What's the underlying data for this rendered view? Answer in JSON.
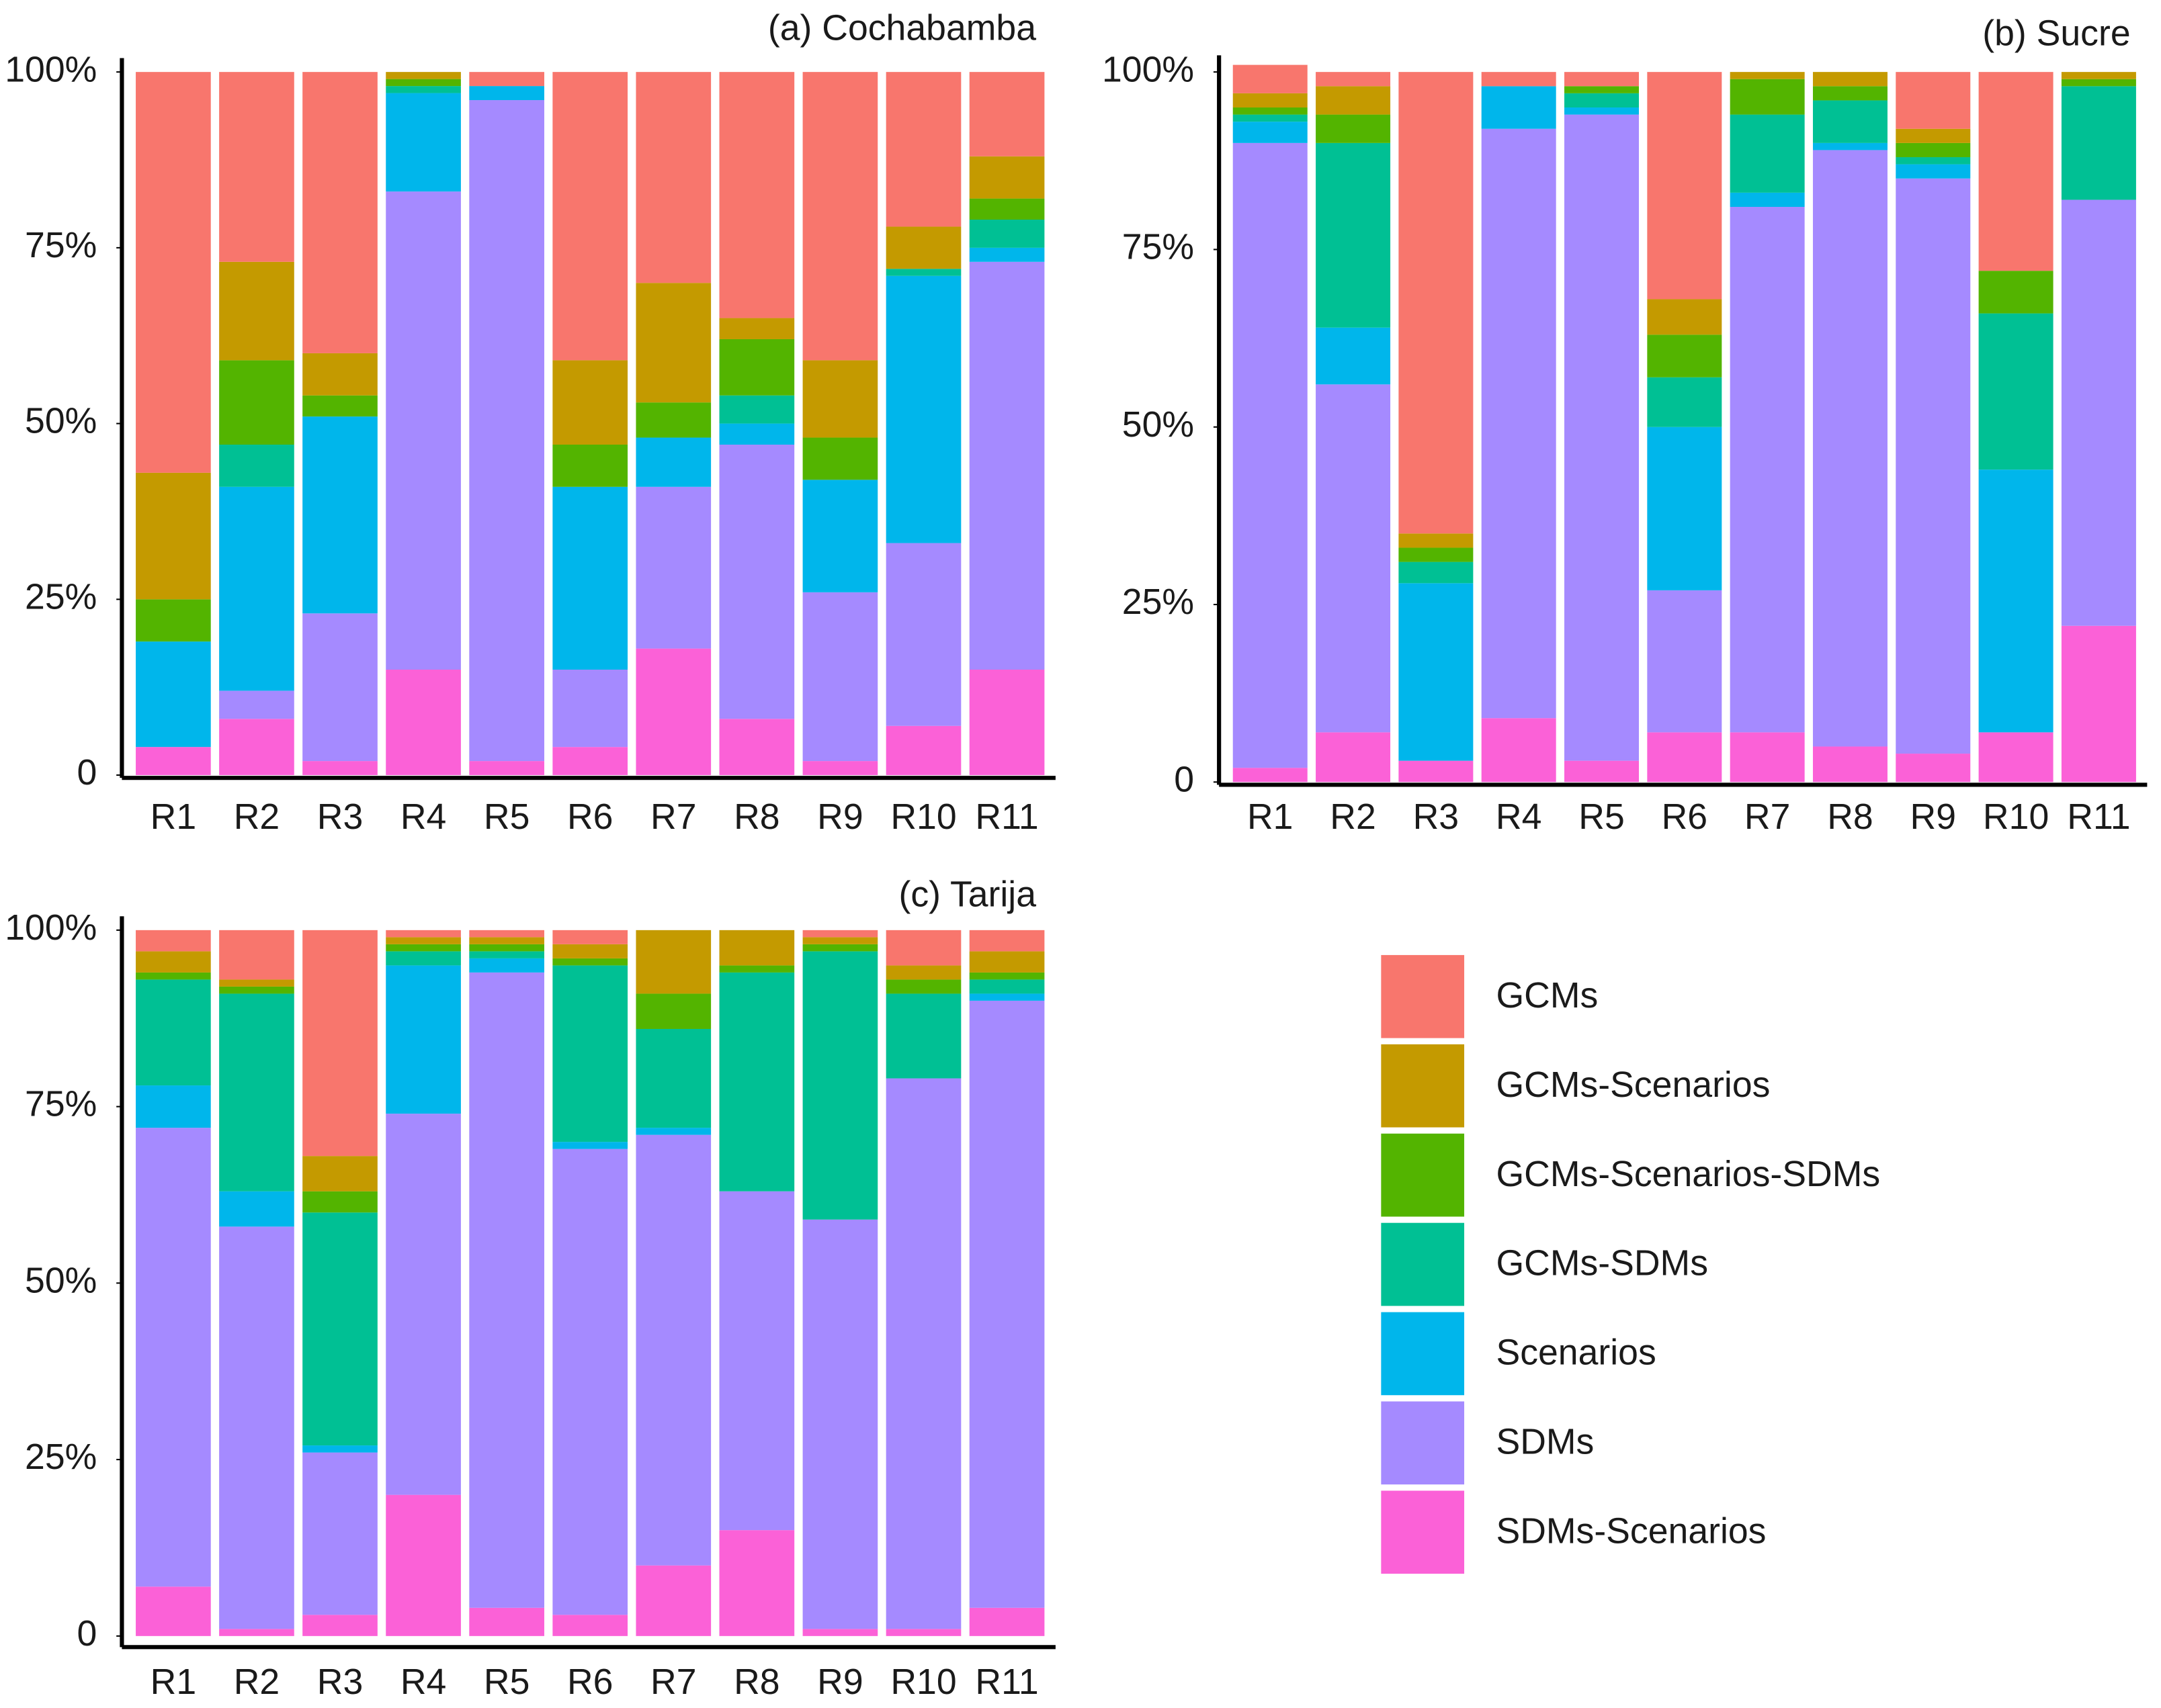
{
  "chart_data": [
    {
      "type": "stacked_bar",
      "title": "(a) Cochabamba",
      "categories": [
        "R1",
        "R2",
        "R3",
        "R4",
        "R5",
        "R6",
        "R7",
        "R8",
        "R9",
        "R10",
        "R11"
      ],
      "ylim": [
        0,
        100
      ],
      "yticks": [
        0,
        {
          "value": 25,
          "label": "25%"
        },
        {
          "value": 50,
          "label": "50%"
        },
        {
          "value": 75,
          "label": "75%"
        },
        {
          "value": 100,
          "label": "100%"
        }
      ],
      "series": [
        {
          "name": "GCMs",
          "color": "#f8766d",
          "values": [
            57,
            27,
            40,
            0,
            2,
            41,
            30,
            35,
            41,
            22,
            12
          ]
        },
        {
          "name": "GCMs-Scenarios",
          "color": "#c49a00",
          "values": [
            18,
            14,
            6,
            1,
            0,
            12,
            17,
            3,
            11,
            6,
            6
          ]
        },
        {
          "name": "GCMs-Scenarios-SDMs",
          "color": "#53b400",
          "values": [
            6,
            12,
            3,
            1,
            0,
            6,
            5,
            8,
            6,
            0,
            3
          ]
        },
        {
          "name": "GCMs-SDMs",
          "color": "#00c094",
          "values": [
            0,
            6,
            0,
            1,
            0,
            0,
            0,
            4,
            0,
            1,
            4
          ]
        },
        {
          "name": "Scenarios",
          "color": "#00b6eb",
          "values": [
            15,
            29,
            28,
            14,
            2,
            26,
            7,
            3,
            16,
            38,
            2
          ]
        },
        {
          "name": "SDMs",
          "color": "#a58aff",
          "values": [
            0,
            4,
            21,
            68,
            94,
            11,
            23,
            39,
            24,
            26,
            58
          ]
        },
        {
          "name": "SDMs-Scenarios",
          "color": "#fb61d7",
          "values": [
            4,
            8,
            2,
            15,
            2,
            4,
            18,
            8,
            2,
            7,
            15
          ]
        }
      ]
    },
    {
      "type": "stacked_bar",
      "title": "(b) Sucre",
      "categories": [
        "R1",
        "R2",
        "R3",
        "R4",
        "R5",
        "R6",
        "R7",
        "R8",
        "R9",
        "R10",
        "R11"
      ],
      "ylim": [
        0,
        100
      ],
      "yticks": [
        0,
        {
          "value": 25,
          "label": "25%"
        },
        {
          "value": 50,
          "label": "50%"
        },
        {
          "value": 75,
          "label": "75%"
        },
        {
          "value": 100,
          "label": "100%"
        }
      ],
      "series": [
        {
          "name": "GCMs",
          "color": "#f8766d",
          "values": [
            4,
            2,
            65,
            2,
            2,
            32,
            0,
            0,
            8,
            28,
            0
          ]
        },
        {
          "name": "GCMs-Scenarios",
          "color": "#c49a00",
          "values": [
            2,
            4,
            2,
            0,
            0,
            5,
            1,
            2,
            2,
            0,
            1
          ]
        },
        {
          "name": "GCMs-Scenarios-SDMs",
          "color": "#53b400",
          "values": [
            1,
            4,
            2,
            0,
            1,
            6,
            5,
            2,
            2,
            6,
            1
          ]
        },
        {
          "name": "GCMs-SDMs",
          "color": "#00c094",
          "values": [
            1,
            26,
            3,
            0,
            2,
            7,
            11,
            6,
            1,
            22,
            16
          ]
        },
        {
          "name": "Scenarios",
          "color": "#00b6eb",
          "values": [
            3,
            8,
            25,
            6,
            1,
            23,
            2,
            1,
            2,
            37,
            0
          ]
        },
        {
          "name": "SDMs",
          "color": "#a58aff",
          "values": [
            88,
            49,
            0,
            83,
            91,
            20,
            74,
            84,
            81,
            0,
            60
          ]
        },
        {
          "name": "SDMs-Scenarios",
          "color": "#fb61d7",
          "values": [
            2,
            7,
            3,
            9,
            3,
            7,
            7,
            5,
            4,
            7,
            22
          ]
        }
      ]
    },
    {
      "type": "stacked_bar",
      "title": "(c) Tarija",
      "categories": [
        "R1",
        "R2",
        "R3",
        "R4",
        "R5",
        "R6",
        "R7",
        "R8",
        "R9",
        "R10",
        "R11"
      ],
      "ylim": [
        0,
        100
      ],
      "yticks": [
        0,
        {
          "value": 25,
          "label": "25%"
        },
        {
          "value": 50,
          "label": "50%"
        },
        {
          "value": 75,
          "label": "75%"
        },
        {
          "value": 100,
          "label": "100%"
        }
      ],
      "series": [
        {
          "name": "GCMs",
          "color": "#f8766d",
          "values": [
            3,
            7,
            32,
            1,
            1,
            2,
            0,
            0,
            1,
            5,
            3
          ]
        },
        {
          "name": "GCMs-Scenarios",
          "color": "#c49a00",
          "values": [
            3,
            1,
            5,
            1,
            1,
            2,
            9,
            5,
            1,
            2,
            3
          ]
        },
        {
          "name": "GCMs-Scenarios-SDMs",
          "color": "#53b400",
          "values": [
            1,
            1,
            3,
            1,
            1,
            1,
            5,
            1,
            1,
            2,
            1
          ]
        },
        {
          "name": "GCMs-SDMs",
          "color": "#00c094",
          "values": [
            15,
            28,
            33,
            2,
            1,
            25,
            14,
            31,
            38,
            12,
            2
          ]
        },
        {
          "name": "Scenarios",
          "color": "#00b6eb",
          "values": [
            6,
            5,
            1,
            21,
            2,
            1,
            1,
            0,
            0,
            0,
            1
          ]
        },
        {
          "name": "SDMs",
          "color": "#a58aff",
          "values": [
            65,
            57,
            23,
            54,
            90,
            66,
            61,
            48,
            58,
            78,
            86
          ]
        },
        {
          "name": "SDMs-Scenarios",
          "color": "#fb61d7",
          "values": [
            7,
            1,
            3,
            20,
            4,
            3,
            10,
            15,
            1,
            1,
            4
          ]
        }
      ]
    }
  ]
}
